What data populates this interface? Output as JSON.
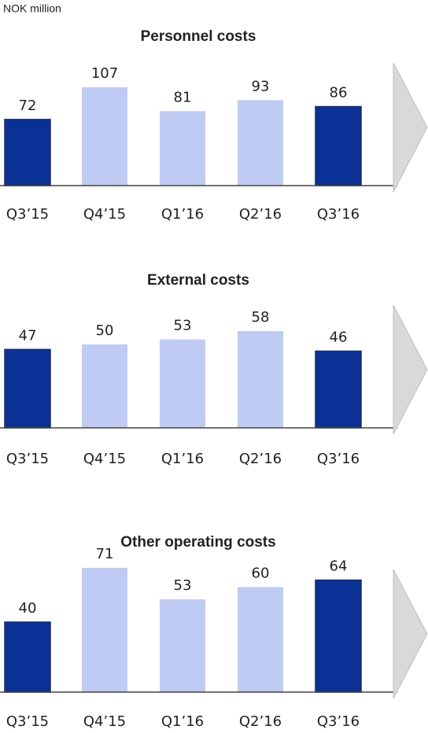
{
  "unit_label": "NOK million",
  "chart_data": [
    {
      "type": "bar",
      "title": "Personnel costs",
      "categories": [
        "Q3’15",
        "Q4’15",
        "Q1’16",
        "Q2’16",
        "Q3’16"
      ],
      "values": [
        72,
        107,
        81,
        93,
        86
      ],
      "colors": [
        "#0a3296",
        "#bfcbf2",
        "#bfcbf2",
        "#bfcbf2",
        "#0a3296"
      ]
    },
    {
      "type": "bar",
      "title": "External costs",
      "categories": [
        "Q3’15",
        "Q4’15",
        "Q1’16",
        "Q2’16",
        "Q3’16"
      ],
      "values": [
        47,
        50,
        53,
        58,
        46
      ],
      "colors": [
        "#0a3296",
        "#bfcbf2",
        "#bfcbf2",
        "#bfcbf2",
        "#0a3296"
      ]
    },
    {
      "type": "bar",
      "title": "Other operating costs",
      "categories": [
        "Q3’15",
        "Q4’15",
        "Q1’16",
        "Q2’16",
        "Q3’16"
      ],
      "values": [
        40,
        71,
        53,
        60,
        64
      ],
      "colors": [
        "#0a3296",
        "#bfcbf2",
        "#bfcbf2",
        "#bfcbf2",
        "#0a3296"
      ]
    }
  ]
}
